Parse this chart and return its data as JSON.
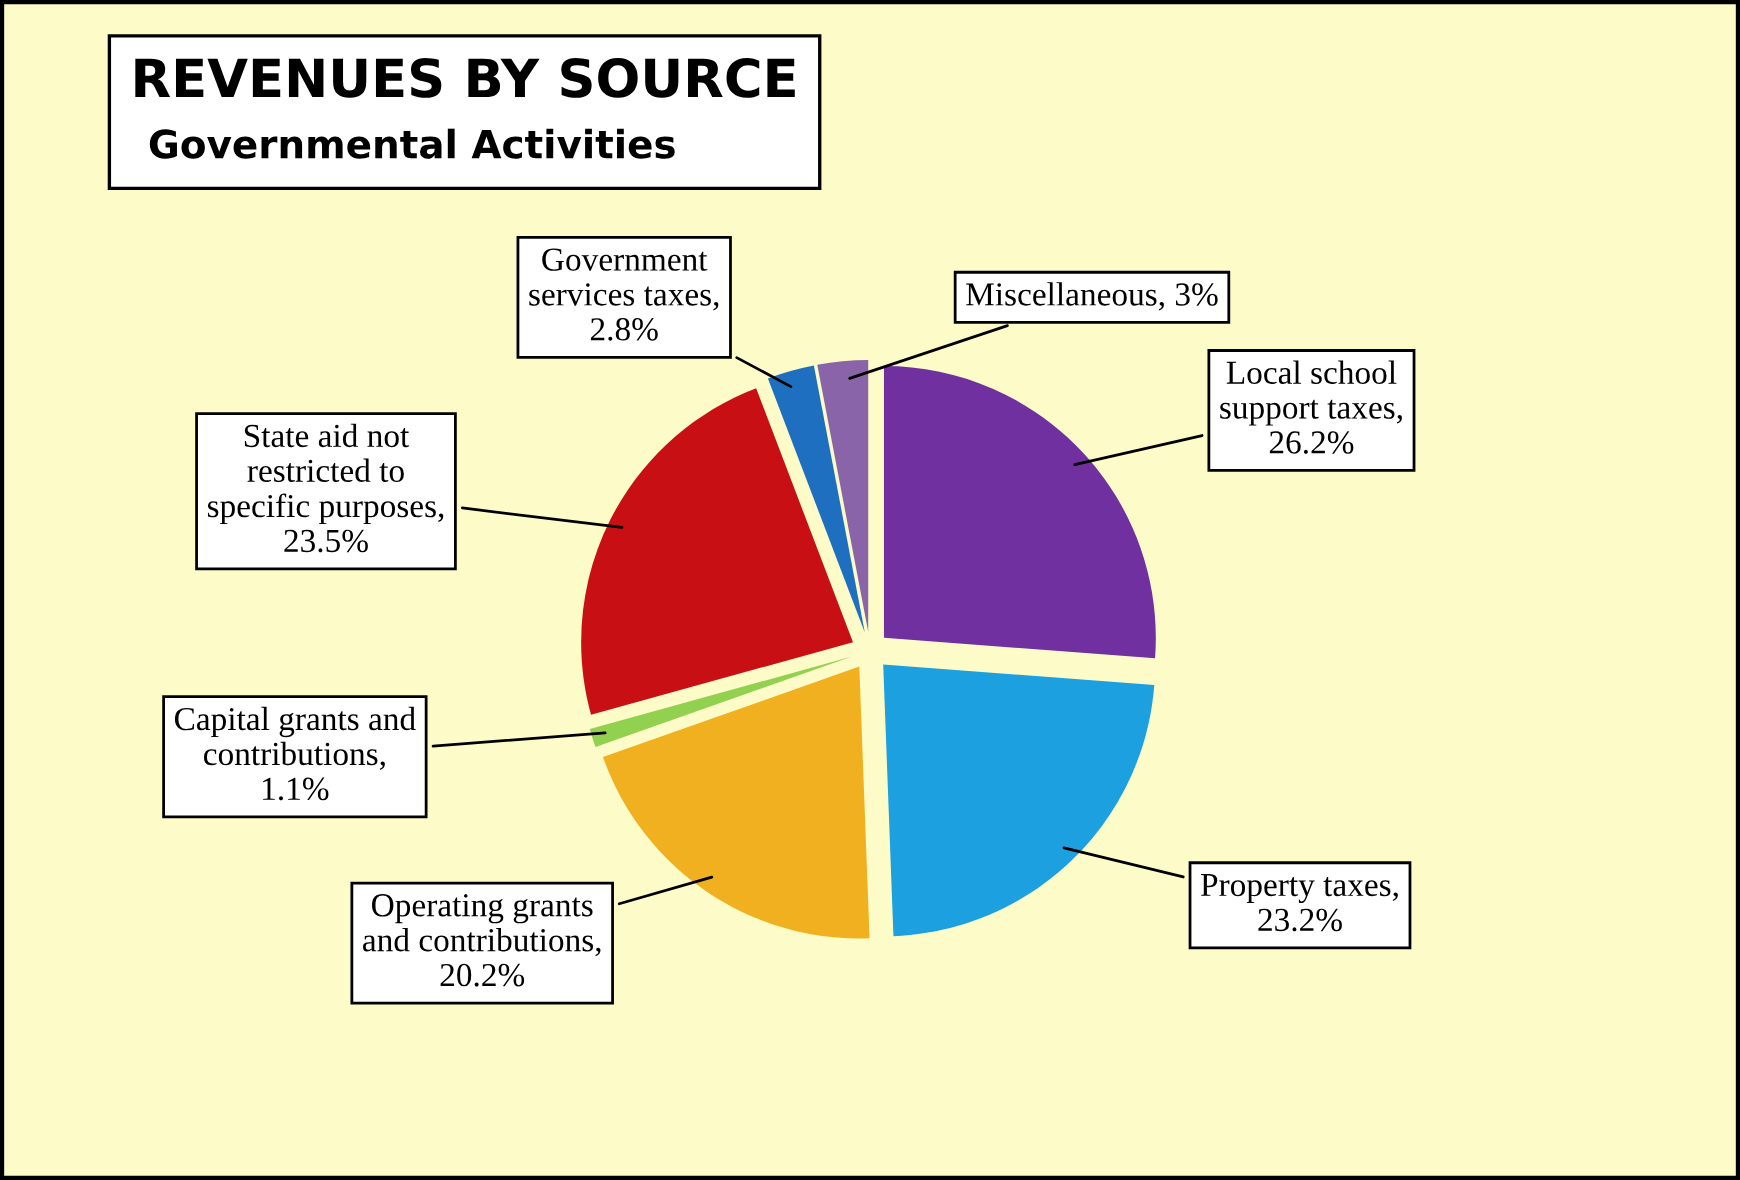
{
  "chart_data": {
    "type": "pie",
    "title": "REVENUES BY SOURCE",
    "subtitle": "Governmental Activities",
    "categories": [
      "Local school support taxes, 26.2%",
      "Property taxes, 23.2%",
      "Operating grants and contributions, 20.2%",
      "Capital grants and contributions, 1.1%",
      "State aid not restricted to specific purposes, 23.5%",
      "Government services taxes, 2.8%",
      "Miscellaneous, 3%"
    ],
    "values": [
      26.2,
      23.2,
      20.2,
      1.1,
      23.5,
      2.8,
      3
    ],
    "colors": [
      "#7030a0",
      "#1ca0e0",
      "#f0b020",
      "#92d050",
      "#c80f14",
      "#1f6fc0",
      "#8a64a8"
    ],
    "legend": false
  }
}
